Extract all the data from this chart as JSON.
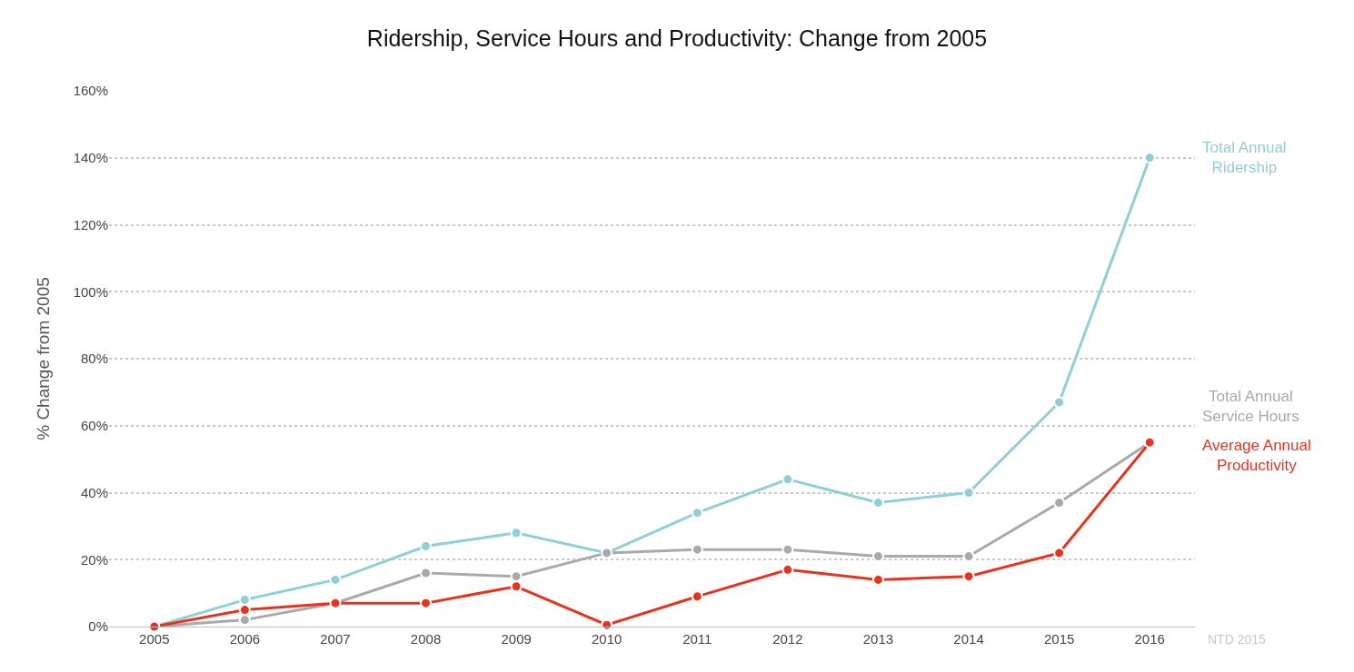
{
  "chart_data": {
    "type": "line",
    "title": "Ridership, Service Hours and Productivity: Change from 2005",
    "ylabel": "% Change from 2005",
    "categories": [
      "2005",
      "2006",
      "2007",
      "2008",
      "2009",
      "2010",
      "2011",
      "2012",
      "2013",
      "2014",
      "2015",
      "2016"
    ],
    "series": [
      {
        "name": "Total Annual Ridership",
        "color": "#8fcfd6",
        "values": [
          0,
          8,
          14,
          24,
          28,
          22,
          34,
          44,
          37,
          40,
          67,
          140
        ]
      },
      {
        "name": "Total Annual Service Hours",
        "color": "#a9a9ab",
        "values": [
          0,
          2,
          7,
          16,
          15,
          22,
          23,
          23,
          21,
          21,
          37,
          55
        ]
      },
      {
        "name": "Average Annual Productivity",
        "color": "#e8321e",
        "values": [
          0,
          5,
          7,
          7,
          12,
          0.5,
          9,
          17,
          14,
          15,
          22,
          55
        ]
      }
    ],
    "ylim": [
      0,
      160
    ],
    "yticks": [
      {
        "value": 0,
        "label": "0%"
      },
      {
        "value": 20,
        "label": "20%"
      },
      {
        "value": 40,
        "label": "40%"
      },
      {
        "value": 60,
        "label": "60%"
      },
      {
        "value": 80,
        "label": "80%"
      },
      {
        "value": 100,
        "label": "100%"
      },
      {
        "value": 120,
        "label": "120%"
      },
      {
        "value": 140,
        "label": "140%"
      },
      {
        "value": 160,
        "label": "160%"
      }
    ],
    "grid": "y",
    "legend": false,
    "marker": "circle",
    "line_style": "solid",
    "annotations": [
      "NTD 2015"
    ]
  }
}
